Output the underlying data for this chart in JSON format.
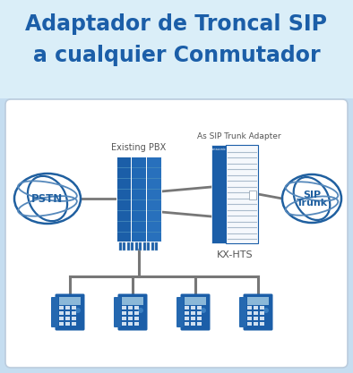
{
  "title_line1": "Adaptador de Troncal SIP",
  "title_line2": "a cualquier Conmutador",
  "title_color": "#1b5ea8",
  "title_bg_top": "#cce4f7",
  "title_bg_bottom": "#e8f4fc",
  "outer_bg": "#c5ddf0",
  "diagram_bg": "#ffffff",
  "pbx_label": "Existing PBX",
  "adapter_label": "As SIP Trunk Adapter",
  "kxhts_label": "KX-HTS",
  "pstn_label": "PSTN",
  "sip_label": "SIP\nTrunk",
  "pbx_color_dark": "#1b5ea8",
  "pbx_color_mid": "#2a6db5",
  "pbx_color_light": "#3a80c8",
  "kx_color_dark": "#1b5ea8",
  "kx_white_panel": "#f0f4f8",
  "line_color": "#777777",
  "globe_color": "#2060a0",
  "globe_fill": "#d8e8f5",
  "phone_body": "#1b5ea8",
  "phone_screen": "#8bb8d8",
  "phone_key": "#d0e0f0",
  "label_color": "#555555",
  "panasonic_color": "#ffffff"
}
